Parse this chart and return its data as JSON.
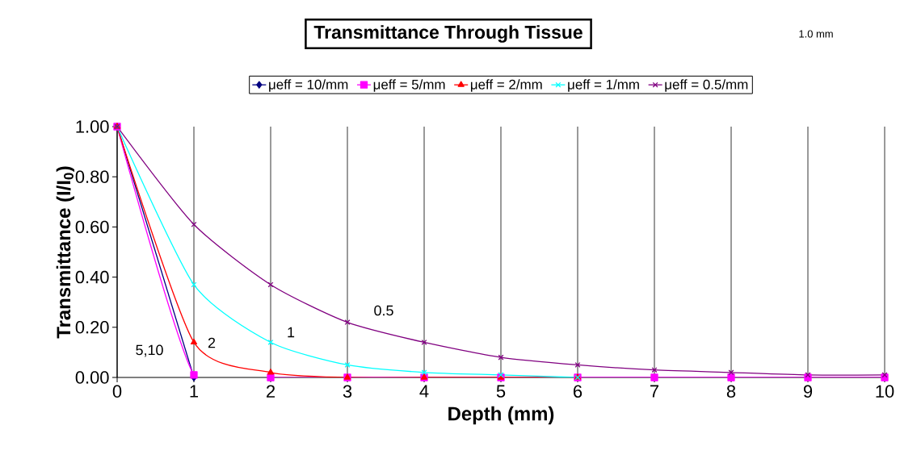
{
  "chart_data": {
    "type": "line",
    "title": "Transmittance Through Tissue",
    "xlabel": "Depth (mm)",
    "ylabel": "Transmittance (I/I$_{0}$)",
    "x": [
      0,
      1,
      2,
      3,
      4,
      5,
      6,
      7,
      8,
      9,
      10
    ],
    "series": [
      {
        "name": "μeff = 10/mm",
        "color": "#000080",
        "marker": "diamond",
        "values": [
          1,
          0,
          null,
          null,
          null,
          null,
          null,
          null,
          null,
          null,
          null
        ]
      },
      {
        "name": "μeff = 5/mm",
        "color": "#ff00ff",
        "marker": "square",
        "values": [
          1,
          0.01,
          0,
          0,
          0,
          0,
          0,
          0,
          0,
          0,
          0
        ]
      },
      {
        "name": "μeff = 2/mm",
        "color": "#ff0000",
        "marker": "triangle",
        "values": [
          1,
          0.14,
          0.02,
          0,
          0,
          0,
          0,
          null,
          null,
          null,
          null
        ]
      },
      {
        "name": "μeff = 1/mm",
        "color": "#00ffff",
        "marker": "cross",
        "values": [
          1,
          0.37,
          0.14,
          0.05,
          0.02,
          0.01,
          0,
          null,
          null,
          null,
          null
        ]
      },
      {
        "name": "μeff = 0.5/mm",
        "color": "#800080",
        "marker": "cross",
        "values": [
          1,
          0.61,
          0.37,
          0.22,
          0.14,
          0.08,
          0.05,
          0.03,
          0.02,
          0.01,
          0.01
        ]
      }
    ],
    "xlim": [
      0,
      10
    ],
    "ylim": [
      0,
      1
    ],
    "xticks": [
      0,
      1,
      2,
      3,
      4,
      5,
      6,
      7,
      8,
      9,
      10
    ],
    "yticks": [
      {
        "value": 0,
        "label": "0.00"
      },
      {
        "value": 0.2,
        "label": "0.20"
      },
      {
        "value": 0.4,
        "label": "0.40"
      },
      {
        "value": 0.6,
        "label": "0.60"
      },
      {
        "value": 0.8,
        "label": "0.80"
      },
      {
        "value": 1,
        "label": "1.00"
      }
    ],
    "grid": "x",
    "legend": "top",
    "annotations": [
      "1.0 mm",
      "5,10",
      "2",
      "1",
      "0.5"
    ]
  }
}
